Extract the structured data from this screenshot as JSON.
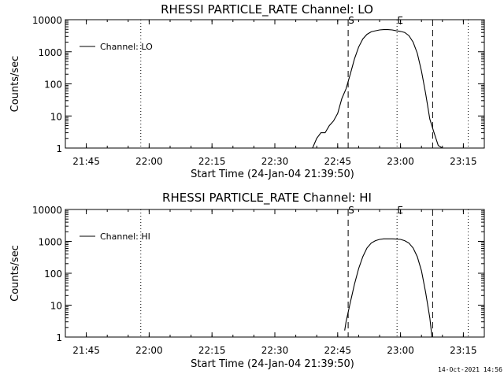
{
  "footer_timestamp": "14-Oct-2021 14:56",
  "colors": {
    "background": "#ffffff",
    "foreground": "#000000"
  },
  "chart_data": [
    {
      "type": "line",
      "title": "RHESSI PARTICLE_RATE Channel: LO",
      "xlabel": "Start Time (24-Jan-04 21:39:50)",
      "ylabel": "Counts/sec",
      "y_scale": "log",
      "ylim": [
        1,
        10000
      ],
      "xlim": [
        "21:40:00",
        "23:20:00"
      ],
      "x_ticks": [
        "21:45",
        "22:00",
        "22:15",
        "22:30",
        "22:45",
        "23:00",
        "23:15"
      ],
      "y_ticks": [
        "1",
        "10",
        "100",
        "1000",
        "10000"
      ],
      "legend": {
        "position": "top-left",
        "entries": [
          "Channel: LO"
        ]
      },
      "markers": [
        {
          "label": "",
          "time": "21:58:00",
          "style": "dotted"
        },
        {
          "label": "S",
          "time": "22:47:30",
          "style": "dashed"
        },
        {
          "label": "E",
          "time": "22:59:10",
          "style": "dotted"
        },
        {
          "label": "",
          "time": "23:07:40",
          "style": "dashed"
        },
        {
          "label": "",
          "time": "23:16:10",
          "style": "dotted"
        }
      ],
      "series": [
        {
          "name": "Channel: LO",
          "x": [
            "22:39:00",
            "22:40:00",
            "22:41:00",
            "22:42:00",
            "22:43:00",
            "22:44:00",
            "22:45:00",
            "22:46:00",
            "22:47:00",
            "22:48:00",
            "22:49:00",
            "22:50:00",
            "22:51:00",
            "22:52:00",
            "22:53:00",
            "22:54:00",
            "22:55:00",
            "22:56:00",
            "22:57:00",
            "22:58:00",
            "22:59:00",
            "23:00:00",
            "23:01:00",
            "23:02:00",
            "23:03:00",
            "23:04:00",
            "23:05:00",
            "23:06:00",
            "23:07:00",
            "23:08:00",
            "23:09:00",
            "23:10:00"
          ],
          "y": [
            1,
            2,
            3,
            3,
            5,
            7,
            12,
            35,
            70,
            200,
            600,
            1400,
            2500,
            3500,
            4200,
            4500,
            4800,
            4900,
            4900,
            4800,
            4500,
            4300,
            4000,
            3200,
            2000,
            900,
            250,
            50,
            8,
            3,
            1.2,
            1
          ]
        }
      ]
    },
    {
      "type": "line",
      "title": "RHESSI PARTICLE_RATE Channel: HI",
      "xlabel": "Start Time (24-Jan-04 21:39:50)",
      "ylabel": "Counts/sec",
      "y_scale": "log",
      "ylim": [
        1,
        10000
      ],
      "xlim": [
        "21:40:00",
        "23:20:00"
      ],
      "x_ticks": [
        "21:45",
        "22:00",
        "22:15",
        "22:30",
        "22:45",
        "23:00",
        "23:15"
      ],
      "y_ticks": [
        "1",
        "10",
        "100",
        "1000",
        "10000"
      ],
      "legend": {
        "position": "top-left",
        "entries": [
          "Channel: HI"
        ]
      },
      "markers": [
        {
          "label": "",
          "time": "21:58:00",
          "style": "dotted"
        },
        {
          "label": "S",
          "time": "22:47:30",
          "style": "dashed"
        },
        {
          "label": "E",
          "time": "22:59:10",
          "style": "dotted"
        },
        {
          "label": "",
          "time": "23:07:40",
          "style": "dashed"
        },
        {
          "label": "",
          "time": "23:16:10",
          "style": "dotted"
        }
      ],
      "series": [
        {
          "name": "Channel: HI",
          "x": [
            "22:46:40",
            "22:47:00",
            "22:48:00",
            "22:49:00",
            "22:50:00",
            "22:51:00",
            "22:52:00",
            "22:53:00",
            "22:54:00",
            "22:55:00",
            "22:56:00",
            "22:57:00",
            "22:58:00",
            "22:59:00",
            "23:00:00",
            "23:01:00",
            "23:02:00",
            "23:03:00",
            "23:04:00",
            "23:05:00",
            "23:06:00",
            "23:07:00",
            "23:07:30"
          ],
          "y": [
            1.6,
            3,
            12,
            45,
            140,
            330,
            620,
            880,
            1050,
            1150,
            1200,
            1200,
            1200,
            1180,
            1150,
            1050,
            880,
            620,
            330,
            120,
            25,
            4,
            1
          ]
        }
      ]
    }
  ]
}
